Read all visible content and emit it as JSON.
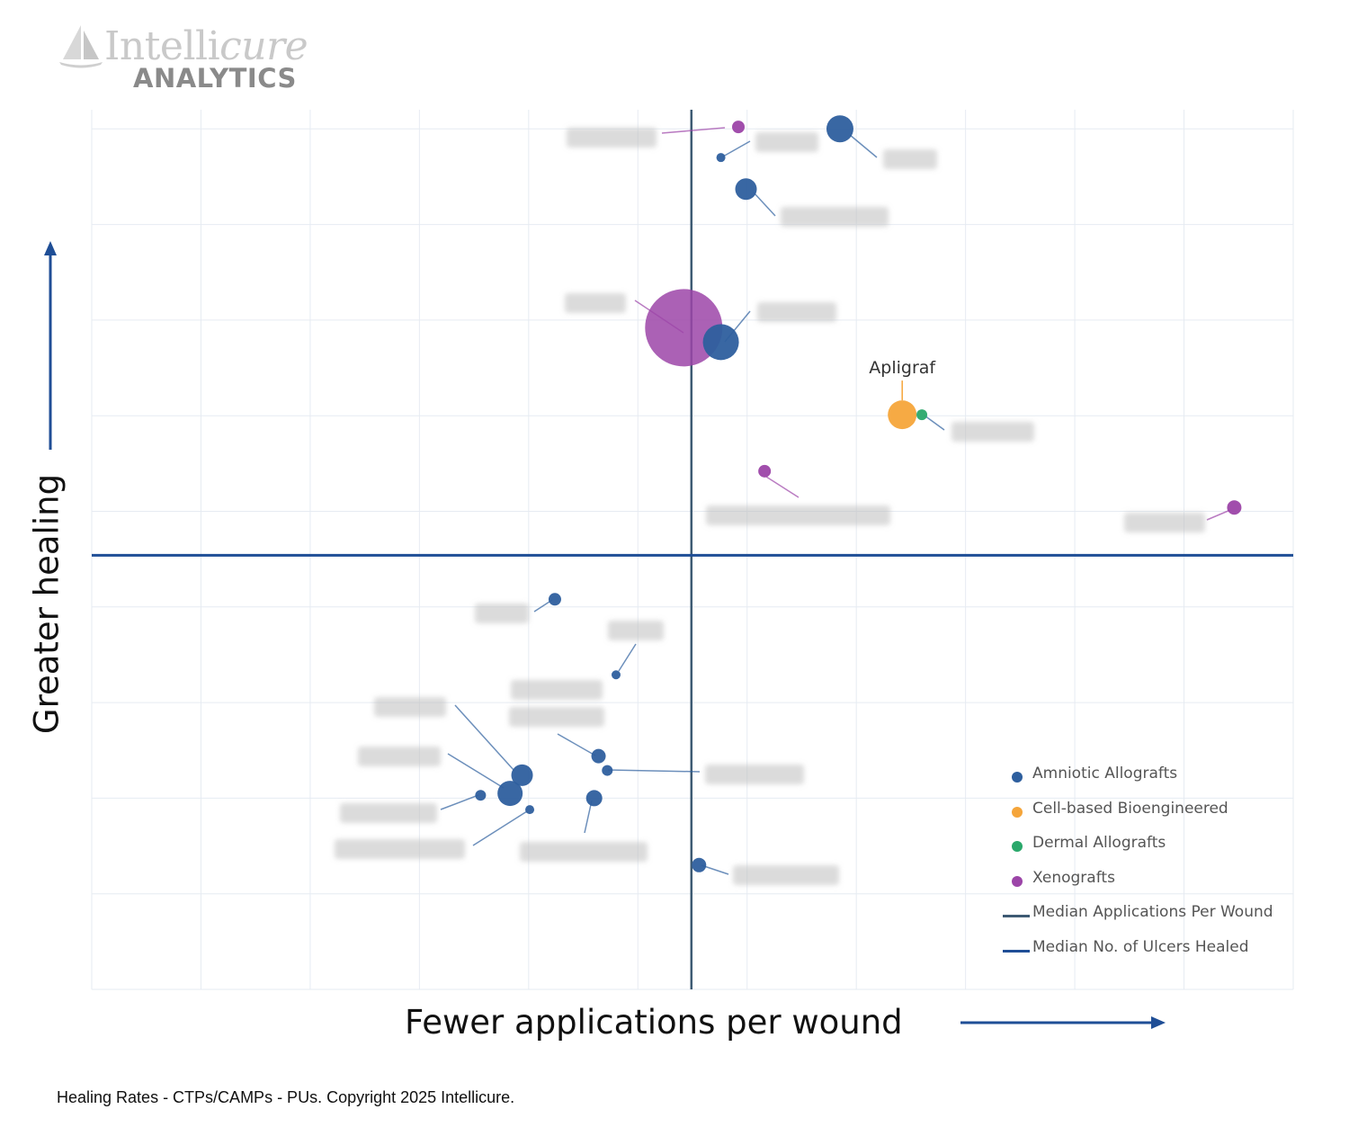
{
  "logo": {
    "brand_main": "Intelli",
    "brand_italic": "cure",
    "brand_sub": "ANALYTICS"
  },
  "caption": "Healing Rates - CTPs/CAMPs - PUs. Copyright 2025 Intellicure.",
  "colors": {
    "amniotic": "#2e5f9e",
    "cell_based": "#f5a53a",
    "dermal": "#2aa86b",
    "xenografts": "#9c45a8",
    "median_applications": "#3d5a73",
    "median_ulcers": "#1f4e96",
    "arrow": "#1f4e96",
    "grid": "#e6ebf2"
  },
  "chart_data": {
    "type": "scatter",
    "variant": "bubble",
    "title": "",
    "xlabel": "Fewer applications per wound",
    "ylabel": "Greater healing",
    "xlim": [
      0,
      11
    ],
    "ylim": [
      0,
      9.2
    ],
    "grid": true,
    "legend_position": "bottom-right",
    "legend": [
      {
        "label": "Amniotic Allografts",
        "kind": "dot",
        "color": "#2e5f9e"
      },
      {
        "label": "Cell-based Bioengineered",
        "kind": "dot",
        "color": "#f5a53a"
      },
      {
        "label": "Dermal Allografts",
        "kind": "dot",
        "color": "#2aa86b"
      },
      {
        "label": "Xenografts",
        "kind": "dot",
        "color": "#9c45a8"
      },
      {
        "label": "Median Applications Per Wound",
        "kind": "line",
        "color": "#3d5a73"
      },
      {
        "label": "Median No. of Ulcers Healed",
        "kind": "line",
        "color": "#1f4e96"
      }
    ],
    "median_x": 5.49,
    "median_y": 4.54,
    "labeled_point": {
      "label": "Apligraf",
      "x": 7.42,
      "y": 6.01
    },
    "series": [
      {
        "name": "Amniotic Allografts",
        "color": "#2e5f9e",
        "points": [
          {
            "x": 6.85,
            "y": 9.0,
            "size": 15
          },
          {
            "x": 5.76,
            "y": 8.7,
            "size": 5
          },
          {
            "x": 5.99,
            "y": 8.37,
            "size": 12
          },
          {
            "x": 5.76,
            "y": 6.77,
            "size": 20
          },
          {
            "x": 4.24,
            "y": 4.08,
            "size": 7
          },
          {
            "x": 4.8,
            "y": 3.29,
            "size": 5
          },
          {
            "x": 4.64,
            "y": 2.44,
            "size": 8
          },
          {
            "x": 4.72,
            "y": 2.29,
            "size": 6
          },
          {
            "x": 3.94,
            "y": 2.24,
            "size": 12
          },
          {
            "x": 3.83,
            "y": 2.05,
            "size": 14
          },
          {
            "x": 3.56,
            "y": 2.03,
            "size": 6
          },
          {
            "x": 4.6,
            "y": 2.0,
            "size": 9
          },
          {
            "x": 4.01,
            "y": 1.88,
            "size": 5
          },
          {
            "x": 5.56,
            "y": 1.3,
            "size": 8
          }
        ]
      },
      {
        "name": "Cell-based Bioengineered",
        "color": "#f5a53a",
        "points": [
          {
            "x": 7.42,
            "y": 6.01,
            "size": 16
          }
        ]
      },
      {
        "name": "Dermal Allografts",
        "color": "#2aa86b",
        "points": [
          {
            "x": 7.6,
            "y": 6.01,
            "size": 6
          }
        ]
      },
      {
        "name": "Xenografts",
        "color": "#9c45a8",
        "points": [
          {
            "x": 5.92,
            "y": 9.02,
            "size": 7
          },
          {
            "x": 5.42,
            "y": 6.92,
            "size": 43
          },
          {
            "x": 6.16,
            "y": 5.42,
            "size": 7
          },
          {
            "x": 10.46,
            "y": 5.04,
            "size": 8
          }
        ]
      }
    ]
  }
}
